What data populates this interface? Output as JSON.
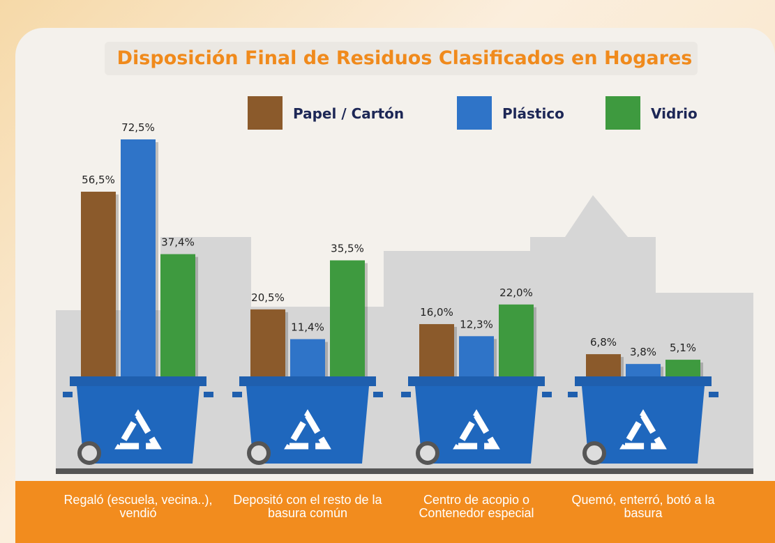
{
  "chart_data": {
    "type": "bar",
    "title": "Disposición Final de Residuos Clasificados en Hogares",
    "categories": [
      "Regaló (escuela, vecina..), vendió",
      "Depositó con el resto de la basura común",
      "Centro de acopio o Contenedor especial",
      "Quemó, enterró, botó a la basura"
    ],
    "series": [
      {
        "name": "Papel / Cartón",
        "color": "#8b5a2b",
        "values": [
          56.5,
          20.5,
          16.0,
          6.8
        ],
        "value_labels": [
          "56,5%",
          "20,5%",
          "16,0%",
          "6,8%"
        ]
      },
      {
        "name": "Plástico",
        "color": "#2f74c8",
        "values": [
          72.5,
          11.4,
          12.3,
          3.8
        ],
        "value_labels": [
          "72,5%",
          "11,4%",
          "12,3%",
          "3,8%"
        ]
      },
      {
        "name": "Vidrio",
        "color": "#3e9a3f",
        "values": [
          37.4,
          35.5,
          22.0,
          5.1
        ],
        "value_labels": [
          "37,4%",
          "35,5%",
          "22,0%",
          "5,1%"
        ]
      }
    ]
  }
}
